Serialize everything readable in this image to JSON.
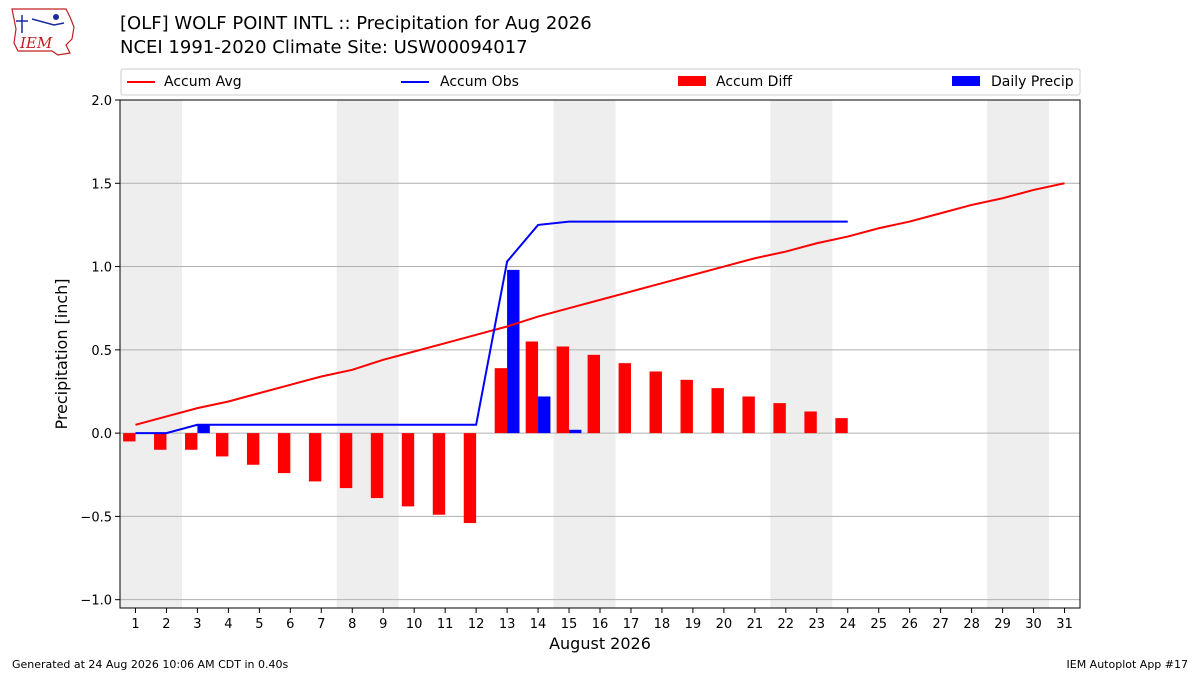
{
  "header": {
    "title_line1": "[OLF] WOLF POINT INTL :: Precipitation for Aug 2026",
    "title_line2": "NCEI 1991-2020 Climate Site: USW00094017",
    "logo_text": "IEM"
  },
  "footer": {
    "generated": "Generated at 24 Aug 2026 10:06 AM CDT in 0.40s",
    "app": "IEM Autoplot App #17"
  },
  "chart_data": {
    "type": "bar",
    "xlabel": "August 2026",
    "ylabel": "Precipitation [inch]",
    "ylim": [
      -1.05,
      2.0
    ],
    "xlim": [
      0.5,
      31.5
    ],
    "yticks": [
      -1.0,
      -0.5,
      0.0,
      0.5,
      1.0,
      1.5,
      2.0
    ],
    "ytick_labels": [
      "−1.0",
      "−0.5",
      "0.0",
      "0.5",
      "1.0",
      "1.5",
      "2.0"
    ],
    "days": [
      1,
      2,
      3,
      4,
      5,
      6,
      7,
      8,
      9,
      10,
      11,
      12,
      13,
      14,
      15,
      16,
      17,
      18,
      19,
      20,
      21,
      22,
      23,
      24,
      25,
      26,
      27,
      28,
      29,
      30,
      31
    ],
    "grid": "horizontal",
    "weekend_shading": [
      [
        0.5,
        2.5
      ],
      [
        7.5,
        9.5
      ],
      [
        14.5,
        16.5
      ],
      [
        21.5,
        23.5
      ],
      [
        28.5,
        30.5
      ]
    ],
    "legend": {
      "placement": "top",
      "entries": [
        "Accum Avg",
        "Accum Obs",
        "Accum Diff",
        "Daily Precip"
      ]
    },
    "series": [
      {
        "name": "Accum Avg",
        "kind": "line",
        "color": "#ff0000",
        "values": [
          0.05,
          0.1,
          0.15,
          0.19,
          0.24,
          0.29,
          0.34,
          0.38,
          0.44,
          0.49,
          0.54,
          0.59,
          0.64,
          0.7,
          0.75,
          0.8,
          0.85,
          0.9,
          0.95,
          1.0,
          1.05,
          1.09,
          1.14,
          1.18,
          1.23,
          1.27,
          1.32,
          1.37,
          1.41,
          1.46,
          1.5
        ]
      },
      {
        "name": "Accum Obs",
        "kind": "line",
        "color": "#0000ff",
        "values": [
          0.0,
          0.0,
          0.05,
          0.05,
          0.05,
          0.05,
          0.05,
          0.05,
          0.05,
          0.05,
          0.05,
          0.05,
          1.03,
          1.25,
          1.27,
          1.27,
          1.27,
          1.27,
          1.27,
          1.27,
          1.27,
          1.27,
          1.27,
          1.27
        ]
      },
      {
        "name": "Accum Diff",
        "kind": "bar",
        "color": "#ff0000",
        "values": [
          -0.05,
          -0.1,
          -0.1,
          -0.14,
          -0.19,
          -0.24,
          -0.29,
          -0.33,
          -0.39,
          -0.44,
          -0.49,
          -0.54,
          0.39,
          0.55,
          0.52,
          0.47,
          0.42,
          0.37,
          0.32,
          0.27,
          0.22,
          0.18,
          0.13,
          0.09
        ]
      },
      {
        "name": "Daily Precip",
        "kind": "bar",
        "color": "#0000ff",
        "values": [
          0.0,
          0.0,
          0.05,
          0.0,
          0.0,
          0.0,
          0.0,
          0.0,
          0.0,
          0.0,
          0.0,
          0.0,
          0.98,
          0.22,
          0.02,
          0.0,
          0.0,
          0.0,
          0.0,
          0.0,
          0.0,
          0.0,
          0.0,
          0.0
        ]
      }
    ]
  }
}
